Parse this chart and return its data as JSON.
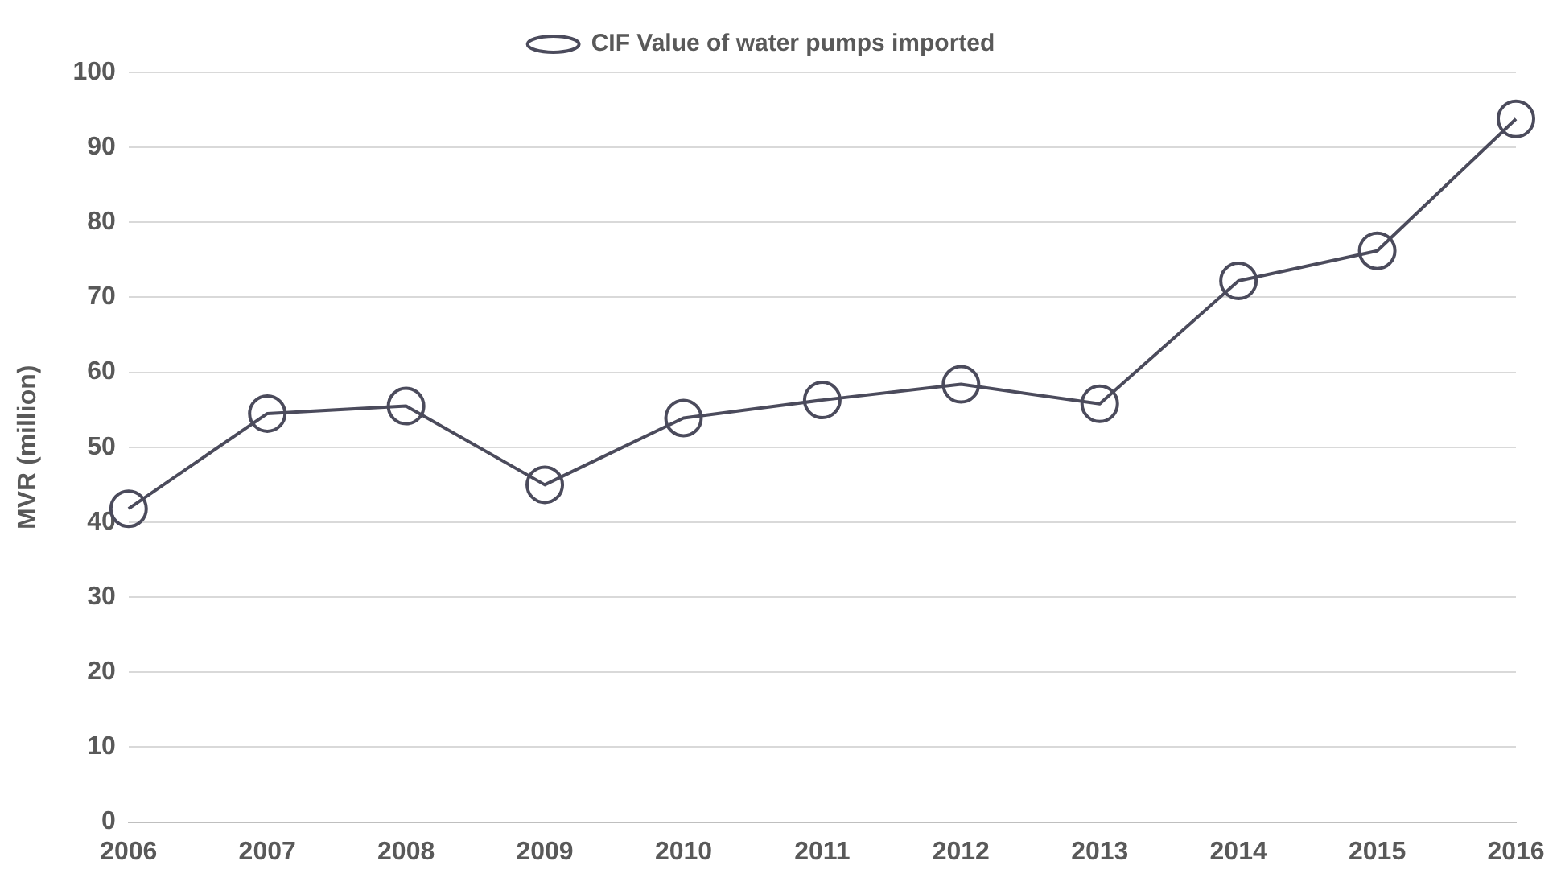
{
  "chart_data": {
    "type": "line",
    "ylabel": "MVR (million)",
    "categories": [
      "2006",
      "2007",
      "2008",
      "2009",
      "2010",
      "2011",
      "2012",
      "2013",
      "2014",
      "2015",
      "2016"
    ],
    "series": [
      {
        "name": "CIF Value of water pumps imported",
        "color": "#4b4b5c",
        "values": [
          41.8,
          54.5,
          55.5,
          45,
          53.9,
          56.3,
          58.4,
          55.8,
          72.2,
          76.2,
          93.8
        ]
      }
    ],
    "ylim": [
      0,
      100
    ],
    "yticks": [
      0,
      10,
      20,
      30,
      40,
      50,
      60,
      70,
      80,
      90,
      100
    ],
    "grid": "y",
    "legend": "top",
    "marker": "circle",
    "line_style": "solid"
  }
}
